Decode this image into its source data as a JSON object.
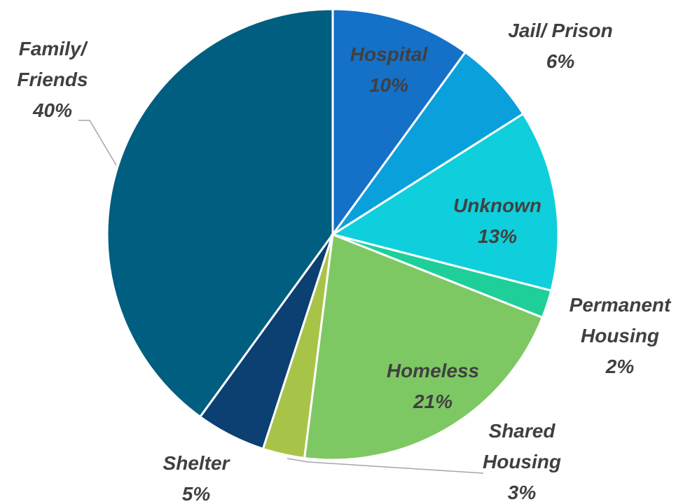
{
  "chart_data": {
    "type": "pie",
    "categories": [
      "Hospital",
      "Jail/ Prison",
      "Unknown",
      "Permanent Housing",
      "Homeless",
      "Shared Housing",
      "Shelter",
      "Family/ Friends"
    ],
    "values": [
      10,
      6,
      13,
      2,
      21,
      3,
      5,
      40
    ],
    "value_labels": [
      "10%",
      "6%",
      "13%",
      "2%",
      "21%",
      "3%",
      "5%",
      "40%"
    ],
    "colors": [
      "#1570c8",
      "#0aa0dc",
      "#0fcfdc",
      "#1fcf9a",
      "#7ec864",
      "#a8c448",
      "#0c3f72",
      "#005e80"
    ]
  }
}
